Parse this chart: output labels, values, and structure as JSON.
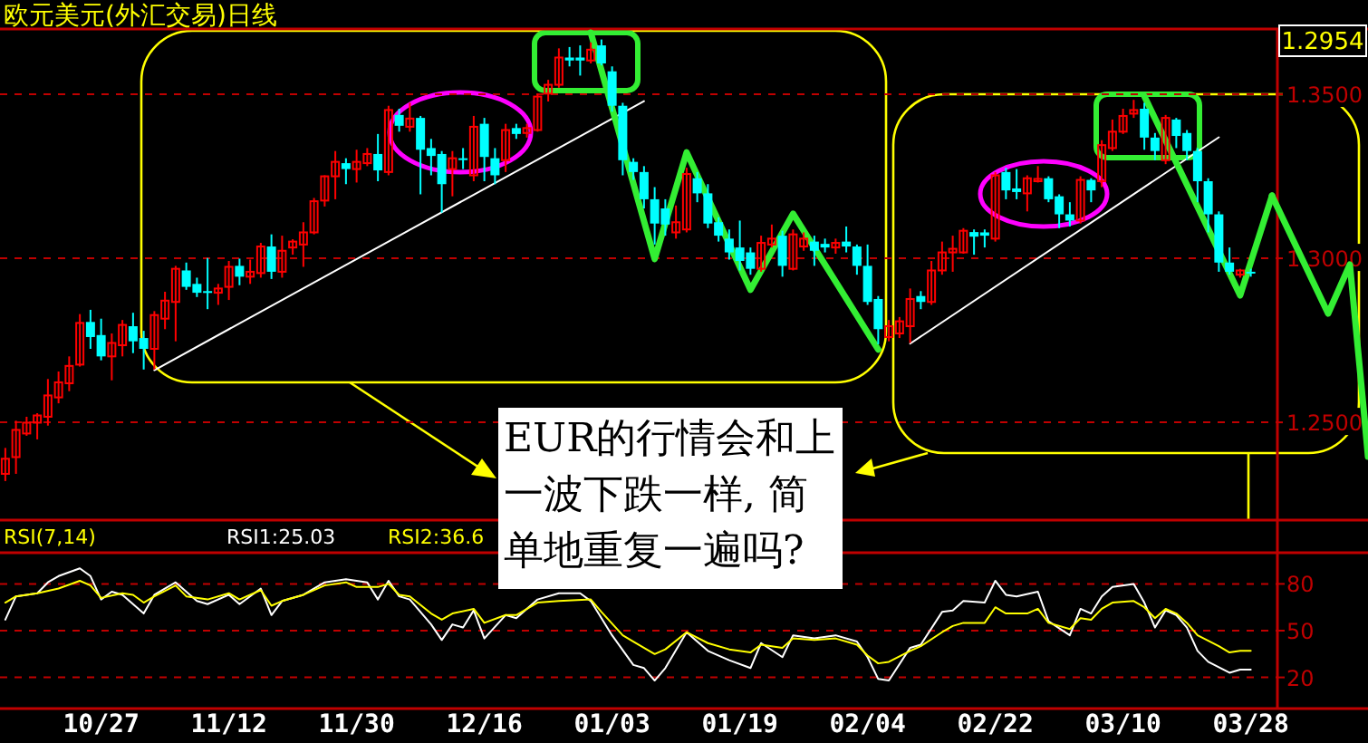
{
  "chart_data": [
    {
      "type": "candlestick",
      "title": "欧元美元(外汇交易)日线",
      "categories": [
        null,
        null,
        null,
        null,
        null,
        null,
        null,
        null,
        null,
        null,
        null,
        null,
        null,
        null,
        null,
        null,
        null,
        null,
        null,
        null,
        null,
        null,
        null,
        null,
        null,
        null,
        null,
        null,
        null,
        null,
        null,
        null,
        null,
        null,
        null,
        null,
        null,
        null,
        null,
        null,
        null,
        null,
        null,
        null,
        null,
        null,
        null,
        null,
        null,
        null,
        null,
        null,
        null,
        null,
        null,
        null,
        null,
        null,
        null,
        null,
        null,
        null,
        null,
        null,
        null,
        null,
        null,
        null,
        null,
        null,
        null,
        null,
        null,
        null,
        null,
        null,
        null,
        null,
        null,
        null,
        null,
        null,
        null,
        null,
        null,
        null,
        null,
        null,
        null,
        null,
        null,
        null,
        null,
        null,
        null,
        null,
        null,
        null,
        null,
        null,
        null,
        null,
        null,
        null,
        null,
        null,
        null,
        null,
        null,
        null,
        null,
        null,
        null,
        null,
        null,
        null,
        null,
        null,
        null,
        null
      ],
      "ohlc": [
        [
          1.2343,
          1.2422,
          1.2321,
          1.2389
        ],
        [
          1.2394,
          1.2505,
          1.2343,
          1.2477
        ],
        [
          1.2466,
          1.2517,
          1.2459,
          1.2499
        ],
        [
          1.2499,
          1.2528,
          1.2448,
          1.2521
        ],
        [
          1.2517,
          1.2632,
          1.249,
          1.2582
        ],
        [
          1.2576,
          1.2655,
          1.2558,
          1.2622
        ],
        [
          1.2619,
          1.2701,
          1.2595,
          1.2672
        ],
        [
          1.2676,
          1.283,
          1.267,
          1.2803
        ],
        [
          1.2806,
          1.2843,
          1.2724,
          1.276
        ],
        [
          1.2766,
          1.2816,
          1.2689,
          1.2701
        ],
        [
          1.2701,
          1.2771,
          1.2628,
          1.2742
        ],
        [
          1.2735,
          1.2812,
          1.2701,
          1.2797
        ],
        [
          1.2793,
          1.2834,
          1.2711,
          1.2747
        ],
        [
          1.2757,
          1.2779,
          1.2661,
          1.2724
        ],
        [
          1.2724,
          1.2839,
          1.2661,
          1.2827
        ],
        [
          1.2816,
          1.2898,
          1.2784,
          1.2871
        ],
        [
          1.2867,
          1.2977,
          1.2747,
          1.2968
        ],
        [
          1.2963,
          1.2987,
          1.2904,
          1.2913
        ],
        [
          1.2922,
          1.2941,
          1.2882,
          1.2895
        ],
        [
          1.29,
          1.3001,
          1.2845,
          1.2895
        ],
        [
          1.2895,
          1.2922,
          1.2858,
          1.2908
        ],
        [
          1.2913,
          1.2992,
          1.2873,
          1.2974
        ],
        [
          1.2977,
          1.2999,
          1.2918,
          1.2944
        ],
        [
          1.2944,
          1.2996,
          1.2922,
          1.2959
        ],
        [
          1.2955,
          1.3047,
          1.2941,
          1.3036
        ],
        [
          1.3036,
          1.3073,
          1.2937,
          1.2959
        ],
        [
          1.2959,
          1.3069,
          1.2941,
          1.3023
        ],
        [
          1.3033,
          1.3058,
          1.3011,
          1.3051
        ],
        [
          1.3042,
          1.311,
          1.2974,
          1.3079
        ],
        [
          1.3079,
          1.3184,
          1.3073,
          1.3174
        ],
        [
          1.3176,
          1.3253,
          1.3158,
          1.325
        ],
        [
          1.325,
          1.3327,
          1.318,
          1.3294
        ],
        [
          1.329,
          1.3305,
          1.3226,
          1.3272
        ],
        [
          1.3272,
          1.3331,
          1.3231,
          1.3294
        ],
        [
          1.329,
          1.3336,
          1.3281,
          1.3318
        ],
        [
          1.3318,
          1.3379,
          1.3235,
          1.3268
        ],
        [
          1.3263,
          1.3465,
          1.3253,
          1.3452
        ],
        [
          1.3437,
          1.3456,
          1.3386,
          1.3404
        ],
        [
          1.3401,
          1.3474,
          1.3386,
          1.3426
        ],
        [
          1.3428,
          1.3434,
          1.3195,
          1.3331
        ],
        [
          1.3336,
          1.3364,
          1.3253,
          1.3312
        ],
        [
          1.3318,
          1.3327,
          1.3139,
          1.3226
        ],
        [
          1.3272,
          1.3327,
          1.3189,
          1.3305
        ],
        [
          1.3305,
          1.3336,
          1.3272,
          1.3301
        ],
        [
          1.3253,
          1.3434,
          1.3235,
          1.3401
        ],
        [
          1.341,
          1.3428,
          1.3235,
          1.3309
        ],
        [
          1.3305,
          1.3336,
          1.3226,
          1.3253
        ],
        [
          1.3299,
          1.341,
          1.3263,
          1.3391
        ],
        [
          1.3397,
          1.341,
          1.3364,
          1.3379
        ],
        [
          1.3382,
          1.341,
          1.3368,
          1.3397
        ],
        [
          1.3391,
          1.3502,
          1.3386,
          1.3493
        ],
        [
          1.3502,
          1.3544,
          1.3478,
          1.3529
        ],
        [
          1.3529,
          1.364,
          1.352,
          1.3612
        ],
        [
          1.3612,
          1.3644,
          1.3585,
          1.3603
        ],
        [
          1.3612,
          1.3649,
          1.3557,
          1.3603
        ],
        [
          1.3603,
          1.3658,
          1.3594,
          1.3636
        ],
        [
          1.3649,
          1.3667,
          1.3588,
          1.3594
        ],
        [
          1.357,
          1.3585,
          1.3447,
          1.3465
        ],
        [
          1.3465,
          1.3474,
          1.3253,
          1.3299
        ],
        [
          1.3294,
          1.3305,
          1.3239,
          1.3263
        ],
        [
          1.3263,
          1.3281,
          1.3152,
          1.318
        ],
        [
          1.318,
          1.3217,
          1.3042,
          1.3106
        ],
        [
          1.3152,
          1.318,
          1.3069,
          1.3103
        ],
        [
          1.3079,
          1.3161,
          1.306,
          1.311
        ],
        [
          1.3088,
          1.3276,
          1.3079,
          1.3257
        ],
        [
          1.3244,
          1.3263,
          1.3171,
          1.3198
        ],
        [
          1.3198,
          1.3226,
          1.3092,
          1.3106
        ],
        [
          1.311,
          1.3125,
          1.3051,
          1.3069
        ],
        [
          1.306,
          1.3088,
          1.2996,
          1.3018
        ],
        [
          1.3033,
          1.3115,
          1.2963,
          1.2992
        ],
        [
          1.3018,
          1.3033,
          1.295,
          1.2968
        ],
        [
          1.2968,
          1.3069,
          1.2959,
          1.3047
        ],
        [
          1.3042,
          1.3103,
          1.3033,
          1.306
        ],
        [
          1.3069,
          1.3084,
          1.2944,
          1.2977
        ],
        [
          1.2968,
          1.3088,
          1.2963,
          1.3073
        ],
        [
          1.3036,
          1.3079,
          1.3023,
          1.306
        ],
        [
          1.3051,
          1.3069,
          1.2977,
          1.3023
        ],
        [
          1.3044,
          1.306,
          1.3018,
          1.3033
        ],
        [
          1.3033,
          1.306,
          1.3014,
          1.3047
        ],
        [
          1.3051,
          1.3097,
          1.3018,
          1.3036
        ],
        [
          1.3036,
          1.3042,
          1.295,
          1.2977
        ],
        [
          1.2977,
          1.3042,
          1.2858,
          1.2867
        ],
        [
          1.2876,
          1.2885,
          1.2738,
          1.2784
        ],
        [
          1.276,
          1.2812,
          1.2747,
          1.2793
        ],
        [
          1.2771,
          1.2821,
          1.2757,
          1.2808
        ],
        [
          1.2793,
          1.2908,
          1.2742,
          1.2876
        ],
        [
          1.2885,
          1.29,
          1.2845,
          1.2867
        ],
        [
          1.2867,
          1.2992,
          1.2858,
          1.2963
        ],
        [
          1.2963,
          1.3051,
          1.295,
          1.3018
        ],
        [
          1.3018,
          1.3069,
          1.2959,
          1.3029
        ],
        [
          1.3018,
          1.3092,
          1.3014,
          1.3084
        ],
        [
          1.308,
          1.3088,
          1.3011,
          1.3066
        ],
        [
          1.3079,
          1.3088,
          1.3033,
          1.3069
        ],
        [
          1.306,
          1.3263,
          1.3051,
          1.3253
        ],
        [
          1.3263,
          1.3276,
          1.318,
          1.3207
        ],
        [
          1.3213,
          1.3272,
          1.318,
          1.3202
        ],
        [
          1.3198,
          1.3253,
          1.3143,
          1.3244
        ],
        [
          1.3235,
          1.3281,
          1.3231,
          1.3242
        ],
        [
          1.3244,
          1.325,
          1.3171,
          1.318
        ],
        [
          1.3189,
          1.3195,
          1.3092,
          1.3134
        ],
        [
          1.3134,
          1.3171,
          1.3097,
          1.3115
        ],
        [
          1.3115,
          1.325,
          1.3106,
          1.3239
        ],
        [
          1.3239,
          1.3244,
          1.3171,
          1.3207
        ],
        [
          1.3235,
          1.336,
          1.3217,
          1.3345
        ],
        [
          1.3336,
          1.3423,
          1.3327,
          1.3386
        ],
        [
          1.3386,
          1.3456,
          1.3379,
          1.3434
        ],
        [
          1.3441,
          1.3483,
          1.3428,
          1.3452
        ],
        [
          1.3456,
          1.3474,
          1.3331,
          1.3368
        ],
        [
          1.3368,
          1.3382,
          1.3299,
          1.3327
        ],
        [
          1.3299,
          1.3437,
          1.3287,
          1.3428
        ],
        [
          1.3423,
          1.3428,
          1.3336,
          1.3373
        ],
        [
          1.3382,
          1.3391,
          1.3299,
          1.3327
        ],
        [
          1.3327,
          1.3336,
          1.3171,
          1.3235
        ],
        [
          1.3235,
          1.3244,
          1.3079,
          1.3134
        ],
        [
          1.3134,
          1.3143,
          1.2959,
          1.2987
        ],
        [
          1.2987,
          1.3033,
          1.295,
          1.2959
        ],
        [
          1.295,
          1.2968,
          1.2941,
          1.2963
        ],
        [
          1.2959,
          1.2968,
          1.2944,
          1.2954
        ],
        null,
        null
      ],
      "colors": [
        "#ff0000",
        "#ff0000",
        "#ff0000",
        "#ff0000",
        "#ff0000",
        "#ff0000",
        "#ff0000",
        "#ff0000",
        "#00ffff",
        "#00ffff",
        "#ff0000",
        "#ff0000",
        "#00ffff",
        "#00ffff",
        "#ff0000",
        "#ff0000",
        "#ff0000",
        "#00ffff",
        "#00ffff",
        "#00ffff",
        "#ff0000",
        "#ff0000",
        "#00ffff",
        "#ff0000",
        "#ff0000",
        "#00ffff",
        "#ff0000",
        "#ff0000",
        "#ff0000",
        "#ff0000",
        "#ff0000",
        "#ff0000",
        "#00ffff",
        "#ff0000",
        "#ff0000",
        "#00ffff",
        "#ff0000",
        "#00ffff",
        "#ff0000",
        "#00ffff",
        "#00ffff",
        "#00ffff",
        "#ff0000",
        "#00ffff",
        "#ff0000",
        "#00ffff",
        "#00ffff",
        "#ff0000",
        "#00ffff",
        "#ff0000",
        "#ff0000",
        "#ff0000",
        "#ff0000",
        "#00ffff",
        "#00ffff",
        "#ff0000",
        "#00ffff",
        "#00ffff",
        "#00ffff",
        "#00ffff",
        "#00ffff",
        "#00ffff",
        "#00ffff",
        "#ff0000",
        "#ff0000",
        "#00ffff",
        "#00ffff",
        "#00ffff",
        "#00ffff",
        "#00ffff",
        "#00ffff",
        "#ff0000",
        "#ff0000",
        "#00ffff",
        "#ff0000",
        "#ff0000",
        "#00ffff",
        "#00ffff",
        "#ff0000",
        "#00ffff",
        "#00ffff",
        "#00ffff",
        "#00ffff",
        "#ff0000",
        "#ff0000",
        "#ff0000",
        "#00ffff",
        "#ff0000",
        "#ff0000",
        "#ff0000",
        "#ff0000",
        "#00ffff",
        "#00ffff",
        "#ff0000",
        "#00ffff",
        "#00ffff",
        "#ff0000",
        "#ff0000",
        "#00ffff",
        "#00ffff",
        "#00ffff",
        "#ff0000",
        "#00ffff",
        "#ff0000",
        "#ff0000",
        "#ff0000",
        "#ff0000",
        "#00ffff",
        "#00ffff",
        "#ff0000",
        "#00ffff",
        "#00ffff",
        "#00ffff",
        "#00ffff",
        "#00ffff",
        "#00ffff",
        "#ff0000",
        "#00ffff",
        null,
        null
      ],
      "series": [
        {
          "type": "line",
          "color": "#ffffff",
          "values": [
            null,
            null,
            null,
            null,
            null,
            null,
            null,
            null,
            null,
            null,
            null,
            null,
            null,
            null,
            1.2659,
            null,
            null,
            null,
            null,
            null,
            null,
            null,
            null,
            null,
            null,
            null,
            null,
            null,
            null,
            null,
            null,
            null,
            null,
            null,
            null,
            null,
            null,
            null,
            null,
            null,
            null,
            null,
            null,
            null,
            null,
            null,
            null,
            null,
            null,
            null,
            null,
            null,
            null,
            null,
            null,
            null,
            null,
            null,
            null,
            null,
            1.3479,
            null,
            null,
            null,
            null,
            null,
            null,
            null,
            null,
            null,
            null,
            null,
            null,
            null,
            null,
            null,
            null,
            null,
            null,
            null,
            null,
            null,
            null,
            null,
            null,
            null,
            null,
            null,
            null,
            null,
            null,
            null,
            null,
            null,
            null,
            null,
            null,
            null,
            null,
            null,
            null,
            null,
            null,
            null,
            null,
            null,
            null,
            null,
            null,
            null,
            null,
            null,
            null,
            null,
            null,
            null,
            null,
            null,
            null,
            null
          ]
        },
        {
          "type": "line",
          "color": "#ffffff",
          "values": [
            null,
            null,
            null,
            null,
            null,
            null,
            null,
            null,
            null,
            null,
            null,
            null,
            null,
            null,
            null,
            null,
            null,
            null,
            null,
            null,
            null,
            null,
            null,
            null,
            null,
            null,
            null,
            null,
            null,
            null,
            null,
            null,
            null,
            null,
            null,
            null,
            null,
            null,
            null,
            null,
            null,
            null,
            null,
            null,
            null,
            null,
            null,
            null,
            null,
            null,
            null,
            null,
            null,
            null,
            null,
            null,
            null,
            null,
            null,
            null,
            null,
            null,
            null,
            null,
            null,
            null,
            null,
            null,
            null,
            null,
            null,
            null,
            null,
            null,
            null,
            null,
            null,
            null,
            null,
            null,
            null,
            null,
            null,
            null,
            null,
            1.274,
            null,
            null,
            null,
            null,
            null,
            null,
            null,
            null,
            null,
            null,
            null,
            null,
            null,
            null,
            null,
            null,
            null,
            null,
            null,
            null,
            null,
            null,
            null,
            null,
            null,
            null,
            null,
            null,
            1.3369,
            null,
            null,
            null,
            null,
            null
          ]
        },
        {
          "type": "line",
          "color": "#33ee33",
          "values": [
            null,
            null,
            null,
            null,
            null,
            null,
            null,
            null,
            null,
            null,
            null,
            null,
            null,
            null,
            null,
            null,
            null,
            null,
            null,
            null,
            null,
            null,
            null,
            null,
            null,
            null,
            null,
            null,
            null,
            null,
            null,
            null,
            null,
            null,
            null,
            null,
            null,
            null,
            null,
            null,
            null,
            null,
            null,
            null,
            null,
            null,
            null,
            null,
            null,
            null,
            null,
            null,
            null,
            null,
            null,
            1.3688,
            null,
            null,
            null,
            null,
            null,
            1.2998,
            null,
            null,
            1.3323,
            null,
            null,
            null,
            null,
            null,
            1.2904,
            null,
            null,
            null,
            1.3136,
            null,
            null,
            null,
            null,
            null,
            null,
            null,
            1.2722,
            null,
            null,
            null,
            null,
            null,
            null,
            null,
            null,
            null,
            null,
            null,
            null,
            null,
            null,
            null,
            null,
            null,
            null,
            null,
            null,
            null,
            null,
            null,
            null,
            null,
            null,
            null,
            null,
            null,
            null,
            null,
            null,
            null,
            null,
            null,
            null,
            null
          ]
        },
        {
          "type": "line",
          "color": "#33ee33",
          "values": [
            null,
            null,
            null,
            null,
            null,
            null,
            null,
            null,
            null,
            null,
            null,
            null,
            null,
            null,
            null,
            null,
            null,
            null,
            null,
            null,
            null,
            null,
            null,
            null,
            null,
            null,
            null,
            null,
            null,
            null,
            null,
            null,
            null,
            null,
            null,
            null,
            null,
            null,
            null,
            null,
            null,
            null,
            null,
            null,
            null,
            null,
            null,
            null,
            null,
            null,
            null,
            null,
            null,
            null,
            null,
            null,
            null,
            null,
            null,
            null,
            null,
            null,
            null,
            null,
            null,
            null,
            null,
            null,
            null,
            null,
            null,
            null,
            null,
            null,
            null,
            null,
            null,
            null,
            null,
            null,
            null,
            null,
            null,
            null,
            null,
            null,
            null,
            null,
            null,
            null,
            null,
            null,
            null,
            null,
            null,
            null,
            null,
            null,
            null,
            null,
            null,
            null,
            null,
            null,
            null,
            null,
            null,
            1.3494,
            null,
            null,
            null,
            null,
            null,
            null,
            null,
            null,
            1.2887,
            null,
            null,
            1.3191
          ]
        }
      ],
      "ylim": [
        1.2202,
        1.3699
      ],
      "yticks": [
        {
          "value": 1.25,
          "label": "1.2500"
        },
        {
          "value": 1.3,
          "label": "1.3000"
        },
        {
          "value": 1.35,
          "label": "1.3500"
        }
      ],
      "grid": "y",
      "tick_labels": "y",
      "annotations": [
        "1.2954",
        "EUR的行情会和上一波下跌一样, 简单地重复一遍吗?"
      ]
    },
    {
      "type": "line",
      "title": "RSI(7,14)",
      "series": [
        {
          "name": "RSI1:25.03",
          "color": "#ffffff",
          "values": [
            57,
            72,
            null,
            74,
            81,
            85,
            null,
            90,
            85,
            70,
            75,
            73,
            null,
            61,
            73,
            null,
            81,
            null,
            69,
            67,
            null,
            73,
            67,
            null,
            77,
            60,
            69,
            null,
            73,
            null,
            81,
            null,
            83,
            null,
            81,
            70,
            82,
            72,
            70,
            null,
            54,
            44,
            54,
            52,
            63,
            45,
            null,
            60,
            58,
            null,
            70,
            null,
            74,
            null,
            74,
            69,
            null,
            47,
            null,
            28,
            26,
            18,
            26,
            null,
            49,
            null,
            37,
            null,
            31,
            null,
            26,
            42,
            null,
            33,
            47,
            null,
            45,
            null,
            47,
            null,
            43,
            33,
            19,
            18,
            null,
            39,
            41,
            null,
            62,
            63,
            69,
            null,
            68,
            82,
            73,
            72,
            null,
            75,
            56,
            null,
            47,
            64,
            61,
            72,
            78,
            null,
            80,
            68,
            52,
            63,
            60,
            52,
            37,
            30,
            null,
            23,
            25,
            25,
            null,
            null
          ]
        },
        {
          "name": "RSI2:36.6",
          "color": "#ffff00",
          "values": [
            68,
            72,
            null,
            74,
            null,
            77,
            null,
            82,
            79,
            71,
            null,
            74,
            73,
            68,
            72,
            null,
            79,
            72,
            null,
            70,
            null,
            74,
            70,
            null,
            76,
            66,
            69,
            null,
            73,
            null,
            79,
            null,
            81,
            78,
            null,
            78,
            80,
            73,
            72,
            null,
            61,
            57,
            61,
            null,
            64,
            55,
            null,
            60,
            60,
            null,
            68,
            null,
            69,
            null,
            null,
            70,
            62,
            null,
            47,
            43,
            null,
            35,
            38,
            null,
            49,
            null,
            42,
            null,
            38,
            null,
            36,
            41,
            null,
            39,
            45,
            null,
            44,
            null,
            45,
            null,
            41,
            34,
            29,
            30,
            null,
            37,
            40,
            null,
            49,
            53,
            55,
            null,
            55,
            65,
            61,
            null,
            61,
            64,
            55,
            null,
            51,
            58,
            57,
            64,
            68,
            null,
            69,
            65,
            58,
            64,
            61,
            55,
            47,
            null,
            40,
            36,
            37,
            37,
            null,
            null
          ]
        }
      ],
      "categories": [
        null,
        null,
        null,
        null,
        null,
        null,
        null,
        null,
        null,
        "10/27",
        null,
        null,
        null,
        null,
        null,
        null,
        null,
        null,
        null,
        null,
        null,
        "11/12",
        null,
        null,
        null,
        null,
        null,
        null,
        null,
        null,
        null,
        null,
        null,
        "11/30",
        null,
        null,
        null,
        null,
        null,
        null,
        null,
        null,
        null,
        null,
        null,
        "12/16",
        null,
        null,
        null,
        null,
        null,
        null,
        null,
        null,
        null,
        null,
        null,
        "01/03",
        null,
        null,
        null,
        null,
        null,
        null,
        null,
        null,
        null,
        null,
        null,
        "01/19",
        null,
        null,
        null,
        null,
        null,
        null,
        null,
        null,
        null,
        null,
        null,
        "02/04",
        null,
        null,
        null,
        null,
        null,
        null,
        null,
        null,
        null,
        null,
        null,
        "02/22",
        null,
        null,
        null,
        null,
        null,
        null,
        null,
        null,
        null,
        null,
        null,
        "03/10",
        null,
        null,
        null,
        null,
        null,
        null,
        null,
        null,
        null,
        null,
        null,
        "03/28",
        null,
        null
      ],
      "ylim": [
        0,
        100
      ],
      "yticks": [
        20,
        50,
        80
      ],
      "grid": "y",
      "legend": "top"
    }
  ]
}
